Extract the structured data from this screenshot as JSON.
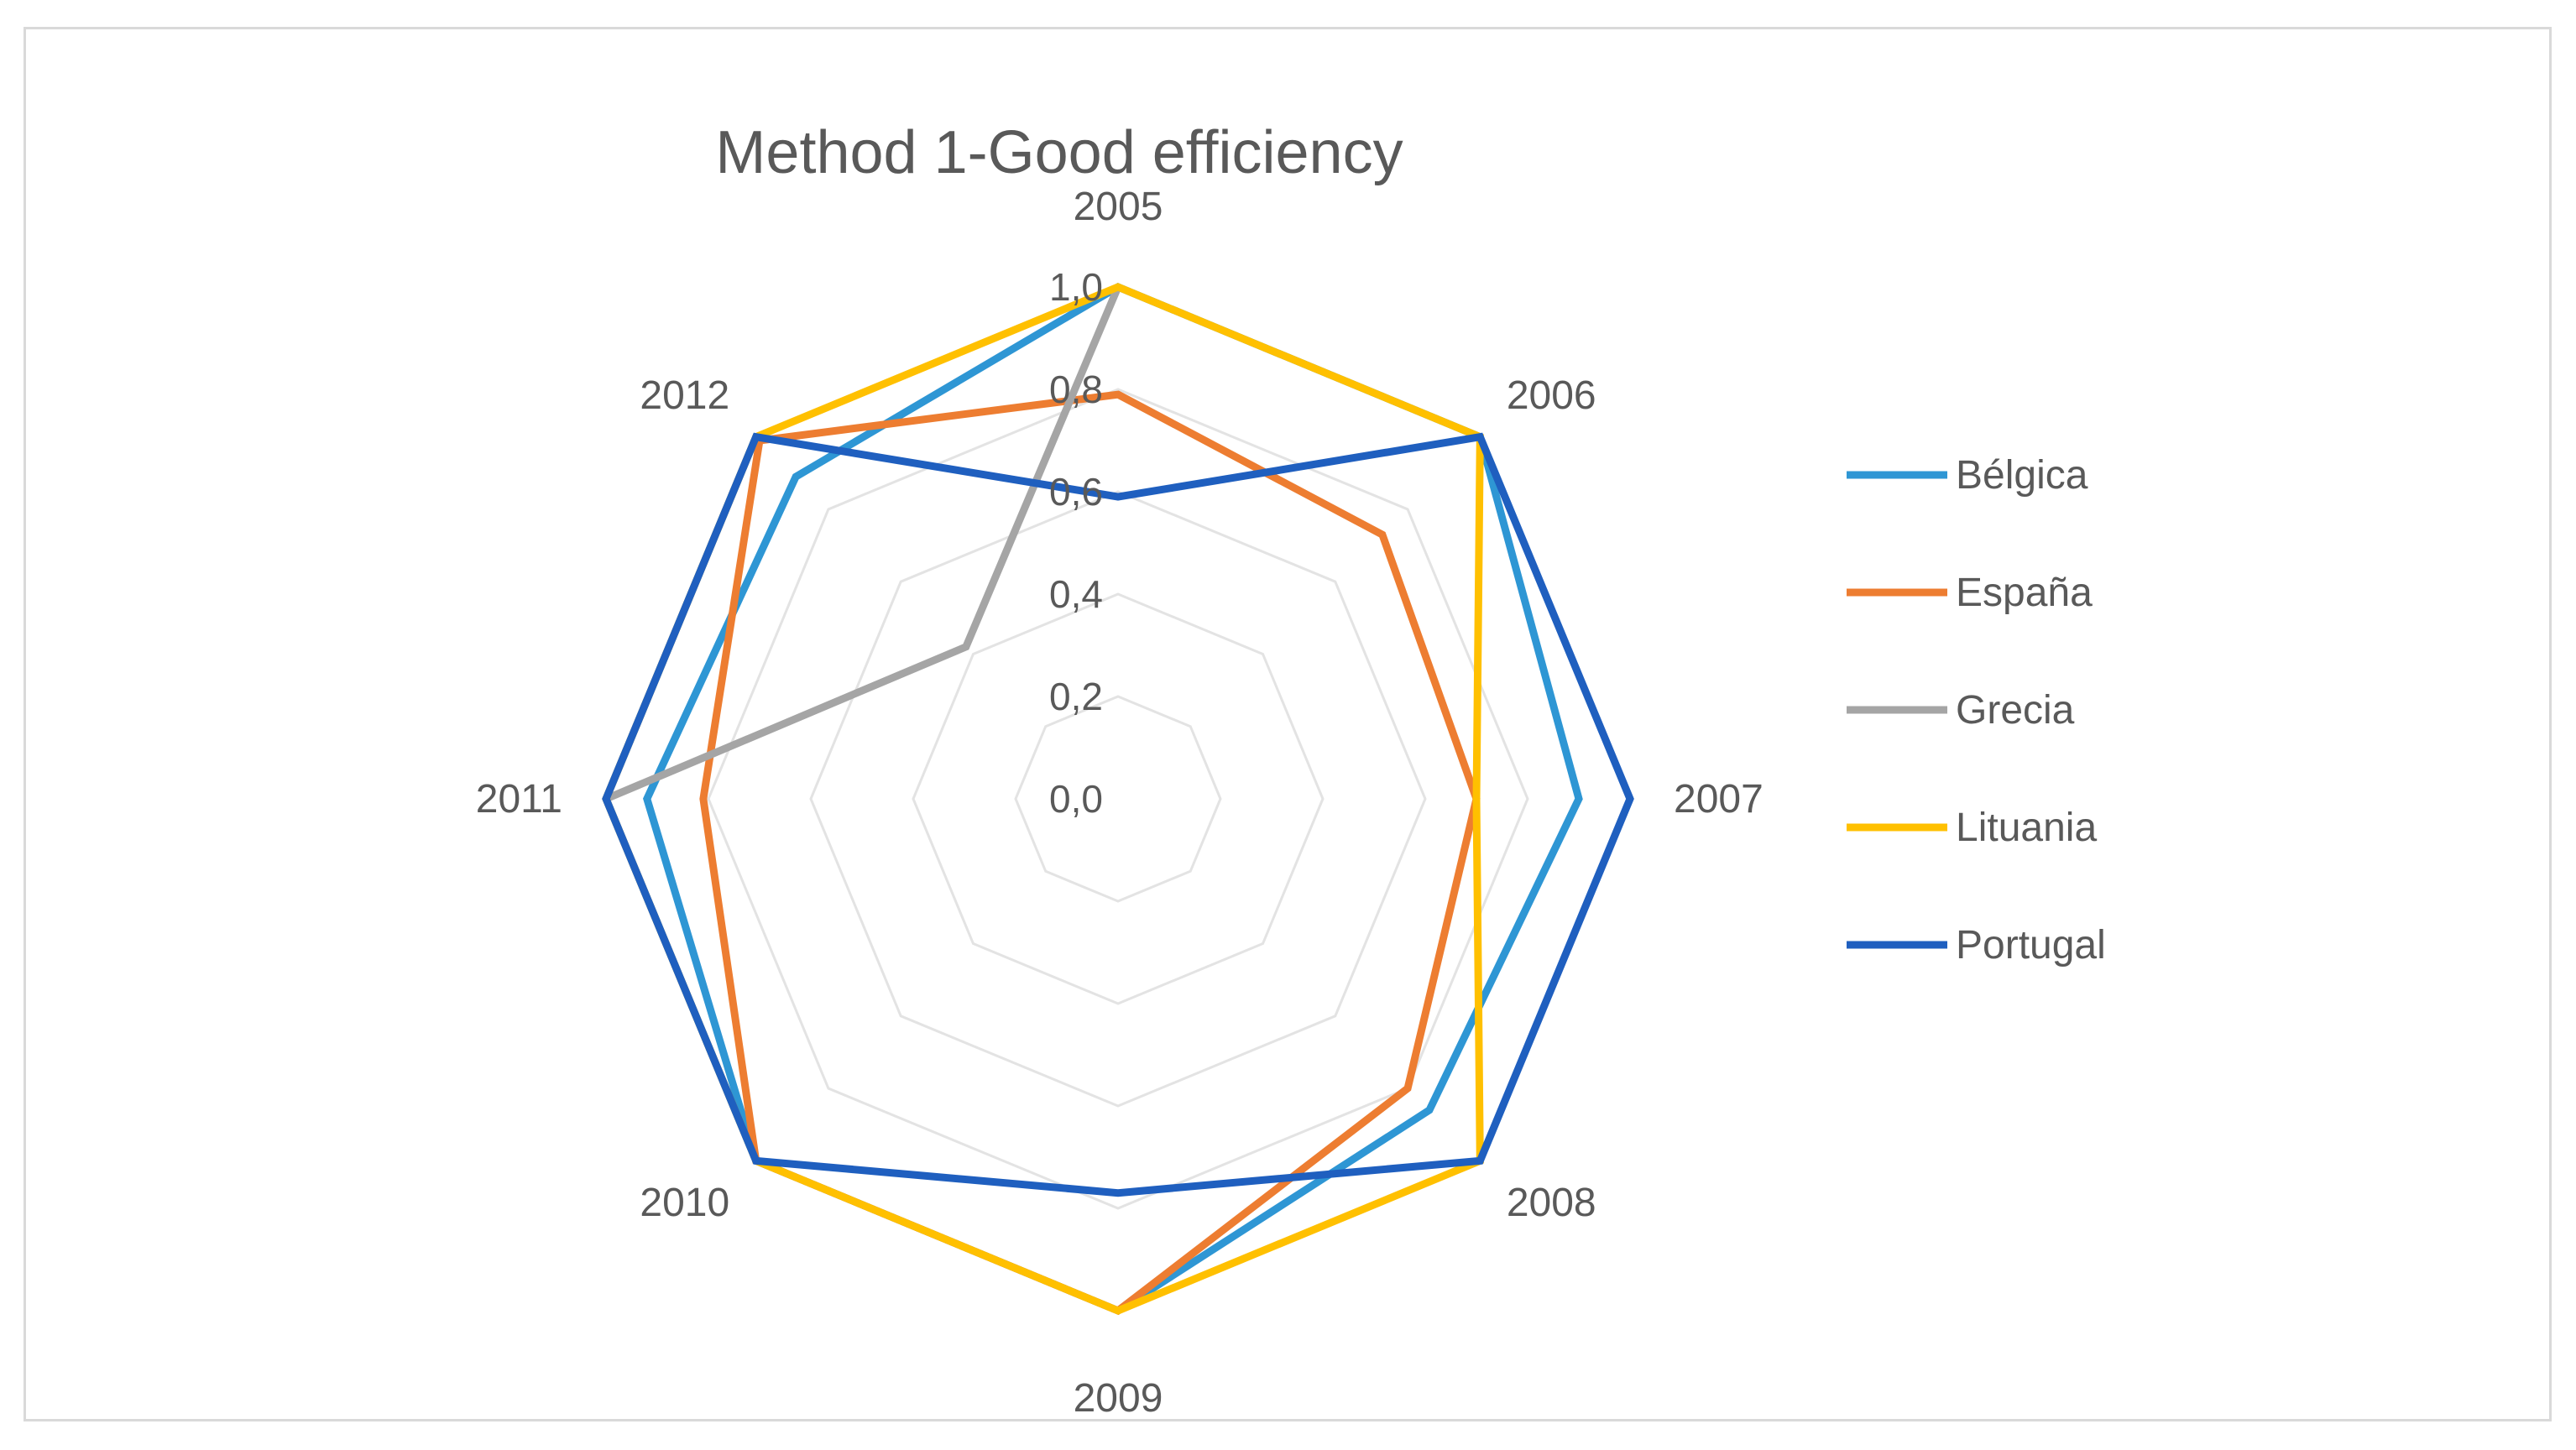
{
  "chart_data": {
    "type": "radar",
    "title": "Method 1-Good efficiency",
    "categories": [
      "2005",
      "2006",
      "2007",
      "2008",
      "2009",
      "2010",
      "2011",
      "2012"
    ],
    "ticks": [
      "0,0",
      "0,2",
      "0,4",
      "0,6",
      "0,8",
      "1,0"
    ],
    "tick_values": [
      0,
      0.2,
      0.4,
      0.6,
      0.8,
      1.0
    ],
    "range": [
      0,
      1.0
    ],
    "legend_position": "right",
    "series": [
      {
        "name": "Bélgica",
        "color": "#2e96d4",
        "values": [
          1.0,
          1.0,
          0.9,
          0.86,
          1.0,
          1.0,
          0.92,
          0.89
        ]
      },
      {
        "name": "España",
        "color": "#ed7d31",
        "values": [
          0.79,
          0.73,
          0.7,
          0.8,
          1.0,
          1.0,
          0.81,
          0.99
        ]
      },
      {
        "name": "Grecia",
        "color": "#a5a5a5",
        "values": [
          1.0,
          null,
          null,
          null,
          null,
          null,
          1.0,
          0.42
        ]
      },
      {
        "name": "Lituania",
        "color": "#ffc000",
        "values": [
          1.0,
          1.0,
          0.7,
          1.0,
          1.0,
          1.0,
          1.0,
          1.0
        ]
      },
      {
        "name": "Portugal",
        "color": "#1f5fbf",
        "values": [
          0.59,
          1.0,
          1.0,
          1.0,
          0.77,
          1.0,
          1.0,
          1.0
        ]
      }
    ]
  }
}
